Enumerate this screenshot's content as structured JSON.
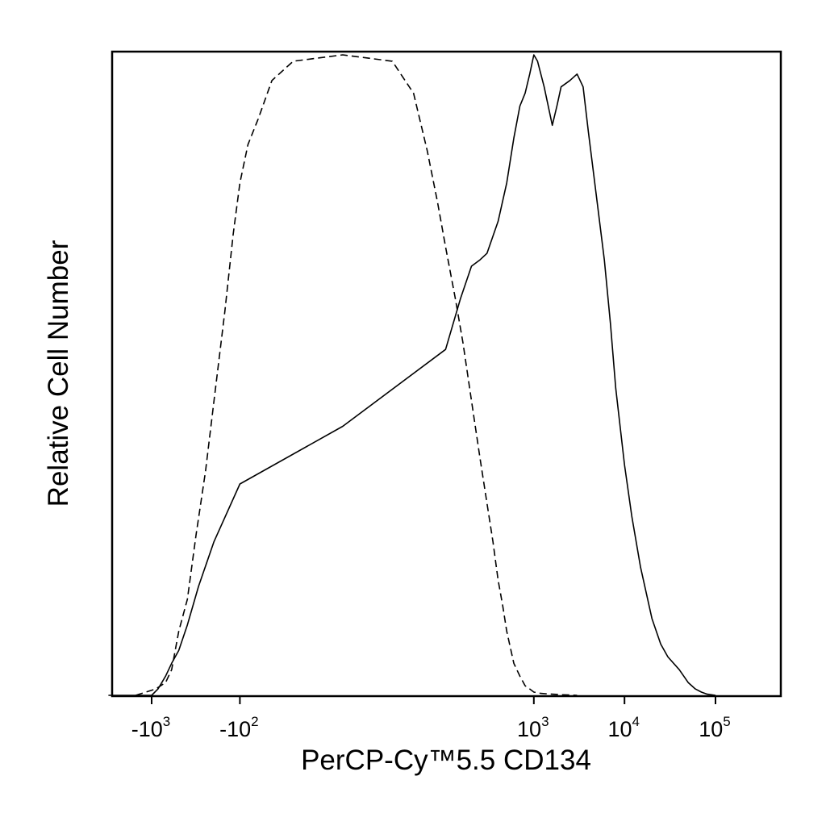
{
  "chart_data": {
    "type": "area",
    "title": "",
    "xlabel": "PerCP-Cy™5.5 CD134",
    "ylabel": "Relative Cell Number",
    "x_scale": "biexponential",
    "x_ticks": [
      {
        "value": -1000,
        "base": "-10",
        "exp": "3"
      },
      {
        "value": -100,
        "base": "-10",
        "exp": "2"
      },
      {
        "value": 1000,
        "base": "10",
        "exp": "3"
      },
      {
        "value": 10000,
        "base": "10",
        "exp": "4"
      },
      {
        "value": 100000,
        "base": "10",
        "exp": "5"
      }
    ],
    "xlim": [
      -3000,
      250000
    ],
    "ylim": [
      0,
      100
    ],
    "grid": false,
    "legend": "none",
    "colors": {
      "line": "#000000",
      "frame": "#000000",
      "background": "#ffffff"
    },
    "series": [
      {
        "style": "dashed",
        "x": [
          -1500,
          -900,
          -700,
          -600,
          -500,
          -400,
          -320,
          -250,
          -200,
          -150,
          -120,
          -100,
          -80,
          -60,
          -40,
          -20,
          0,
          20,
          40,
          60,
          80,
          100,
          130,
          160,
          200,
          250,
          300,
          350,
          400,
          450,
          500,
          600,
          700,
          800,
          900,
          1000,
          1200,
          1500,
          2000,
          3000
        ],
        "y": [
          0,
          1,
          2,
          4,
          10,
          15,
          25,
          35,
          46,
          60,
          72,
          80,
          86,
          90,
          96,
          99,
          100,
          99,
          94,
          85,
          77,
          70,
          62,
          55,
          46,
          37,
          30,
          24,
          18,
          14,
          10,
          5,
          3,
          1.5,
          1,
          0.5,
          0.3,
          0.2,
          0.1,
          0
        ]
      },
      {
        "style": "solid",
        "x": [
          -3000,
          -1000,
          -850,
          -700,
          -600,
          -500,
          -400,
          -300,
          -200,
          -100,
          0,
          100,
          150,
          200,
          250,
          300,
          400,
          500,
          600,
          700,
          800,
          900,
          1000,
          1100,
          1300,
          1600,
          1800,
          2000,
          2500,
          3000,
          3500,
          4000,
          5000,
          6000,
          7000,
          8000,
          10000,
          12000,
          15000,
          20000,
          25000,
          30000,
          40000,
          50000,
          60000,
          70000,
          80000,
          100000
        ],
        "y": [
          0,
          0,
          1,
          3,
          5,
          7,
          11,
          17,
          24,
          33,
          42,
          54,
          62,
          67,
          68,
          69,
          74,
          80,
          87,
          92,
          94,
          97,
          100,
          99,
          95,
          89,
          92,
          95,
          96,
          97,
          95,
          88,
          77,
          68,
          58,
          48,
          36,
          28,
          20,
          12,
          8,
          6,
          4,
          2,
          1,
          0.5,
          0.2,
          0
        ]
      }
    ]
  }
}
